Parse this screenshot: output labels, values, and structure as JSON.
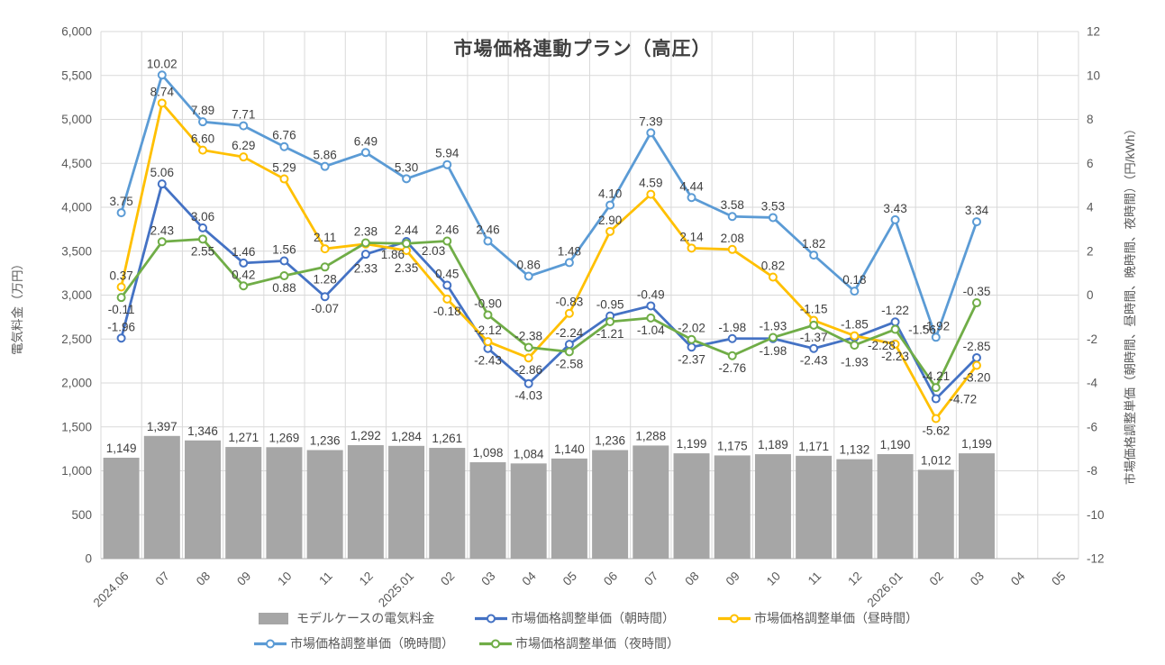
{
  "title": "市場価格連動プラン（高圧）",
  "colors": {
    "bar": "#A6A6A6",
    "line_morning": "#4472C4",
    "line_daytime": "#FFC000",
    "line_evening": "#5B9BD5",
    "line_night": "#70AD47",
    "grid": "#D9D9D9",
    "axis_line": "#BFBFBF",
    "tick_text": "#595959",
    "data_label": "#404040",
    "title_text": "#3F3F3F"
  },
  "chart_data": {
    "type": "combo",
    "title": "市場価格連動プラン（高圧）",
    "grid": true,
    "legend_position": "bottom",
    "categories": [
      "2024.06",
      "07",
      "08",
      "09",
      "10",
      "11",
      "12",
      "2025.01",
      "02",
      "03",
      "04",
      "05",
      "06",
      "07",
      "08",
      "09",
      "10",
      "11",
      "12",
      "2026.01",
      "02",
      "03",
      "04",
      "05"
    ],
    "left_axis": {
      "label": "電気料金（万円）",
      "min": 0,
      "max": 6000,
      "step": 500
    },
    "right_axis": {
      "label": "市場価格調整単価（朝時間、昼時間、晩時間、夜時間）（円/kWh）",
      "min": -12,
      "max": 12,
      "step": 2
    },
    "series": [
      {
        "name": "モデルケースの電気料金",
        "type": "bar",
        "axis": "left",
        "color": "#A6A6A6",
        "values": [
          1149,
          1397,
          1346,
          1271,
          1269,
          1236,
          1292,
          1284,
          1261,
          1098,
          1084,
          1140,
          1236,
          1288,
          1199,
          1175,
          1189,
          1171,
          1132,
          1190,
          1012,
          1199
        ]
      },
      {
        "name": "市場価格調整単価（朝時間）",
        "type": "line",
        "axis": "right",
        "color": "#4472C4",
        "values": [
          -1.96,
          5.06,
          3.06,
          1.46,
          1.56,
          -0.07,
          1.86,
          2.44,
          0.45,
          -2.43,
          -4.03,
          -2.24,
          -0.95,
          -0.49,
          -2.37,
          -1.98,
          -1.98,
          -2.43,
          -1.93,
          -1.22,
          -4.72,
          -2.85
        ]
      },
      {
        "name": "市場価格調整単価（昼時間）",
        "type": "line",
        "axis": "right",
        "color": "#FFC000",
        "values": [
          0.37,
          8.74,
          6.6,
          6.29,
          5.29,
          2.11,
          2.33,
          2.03,
          -0.18,
          -2.12,
          -2.86,
          -0.83,
          2.9,
          4.59,
          2.14,
          2.08,
          0.82,
          -1.15,
          -1.85,
          -2.23,
          -5.62,
          -3.2
        ]
      },
      {
        "name": "市場価格調整単価（晩時間）",
        "type": "line",
        "axis": "right",
        "color": "#5B9BD5",
        "values": [
          3.75,
          10.02,
          7.89,
          7.71,
          6.76,
          5.86,
          6.49,
          5.3,
          5.94,
          2.46,
          0.86,
          1.48,
          4.1,
          7.39,
          4.44,
          3.58,
          3.53,
          1.82,
          0.18,
          3.43,
          -1.92,
          3.34
        ]
      },
      {
        "name": "市場価格調整単価（夜時間）",
        "type": "line",
        "axis": "right",
        "color": "#70AD47",
        "values": [
          -0.11,
          2.43,
          2.55,
          0.42,
          0.88,
          1.28,
          2.38,
          2.35,
          2.46,
          -0.9,
          -2.38,
          -2.58,
          -1.21,
          -1.04,
          -2.02,
          -2.76,
          -1.93,
          -1.37,
          -2.28,
          -1.56,
          -4.21,
          -0.35
        ]
      }
    ]
  }
}
